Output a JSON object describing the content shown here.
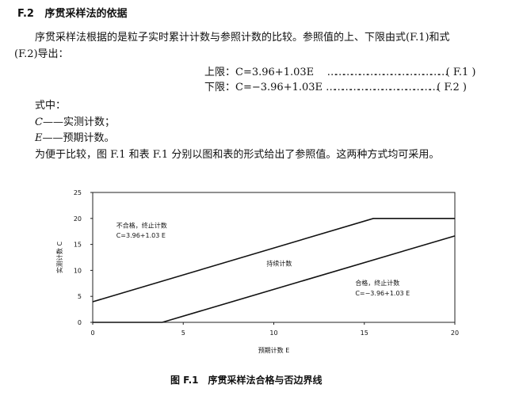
{
  "section": {
    "number": "F.2",
    "title": "序贯采样法的依据"
  },
  "para1": "序贯采样法根据的是粒子实时累计计数与参照计数的比较。参照值的上、下限由式(F.1)和式",
  "para1b": "(F.2)导出：",
  "formulas": [
    {
      "label": "上限：",
      "expr": "C=3.96+1.03E",
      "leader": "………………………………………",
      "num": "( F.1 )"
    },
    {
      "label": "下限：",
      "expr": "C=−3.96+1.03E",
      "leader": "……………………………………",
      "num": "( F.2 )"
    }
  ],
  "where": "式中：",
  "defs": [
    {
      "sym": "C",
      "text": "——实测计数；"
    },
    {
      "sym": "E",
      "text": "——预期计数。"
    }
  ],
  "para2": "为便于比较，图 F.1 和表 F.1 分别以图和表的形式给出了参照值。这两种方式均可采用。",
  "caption": "图 F.1　序贯采样法合格与否边界线",
  "chart_data": {
    "type": "line",
    "xlabel": "预期计数 E",
    "ylabel": "实测计数 C",
    "xlim": [
      0,
      20
    ],
    "ylim": [
      0,
      25
    ],
    "xticks": [
      0,
      5,
      10,
      15,
      20
    ],
    "yticks": [
      0,
      5,
      10,
      15,
      20,
      25
    ],
    "series": [
      {
        "points": [
          [
            0,
            3.96
          ],
          [
            15.5,
            20
          ],
          [
            20,
            20
          ]
        ]
      },
      {
        "points": [
          [
            0,
            0
          ],
          [
            3.84,
            0
          ],
          [
            20,
            16.64
          ]
        ]
      }
    ],
    "annotations": [
      {
        "text": "不合格，终止计数",
        "x": 1.3,
        "y": 18.2
      },
      {
        "text": "C=3.96+1.03 E",
        "x": 1.3,
        "y": 16.3
      },
      {
        "text": "持续计数",
        "x": 9.6,
        "y": 10.9
      },
      {
        "text": "合格，终止计数",
        "x": 14.5,
        "y": 7.2
      },
      {
        "text": "C=−3.96+1.03 E",
        "x": 14.5,
        "y": 5.2
      }
    ]
  }
}
